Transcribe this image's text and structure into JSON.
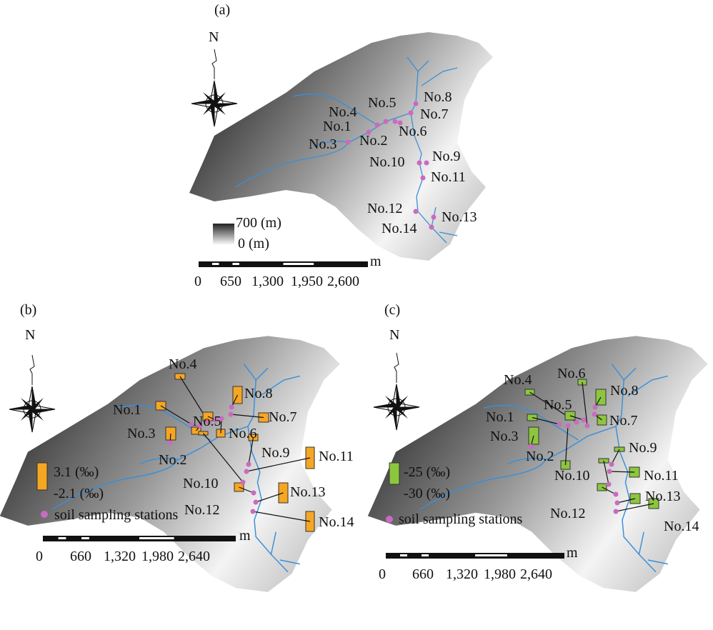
{
  "panels": [
    {
      "label": "(a)",
      "north": "N",
      "stations": [
        "No.1",
        "No.2",
        "No.3",
        "No.4",
        "No.5",
        "No.6",
        "No.7",
        "No.8",
        "No.9",
        "No.10",
        "No.11",
        "No.12",
        "No.13",
        "No.14"
      ],
      "legend": {
        "high": "700 (m)",
        "low": "0 (m)"
      },
      "scale": {
        "unit": "m",
        "ticks": [
          "0",
          "650",
          "1,300",
          "1,950",
          "2,600"
        ]
      }
    },
    {
      "label": "(b)",
      "north": "N",
      "stations": [
        "No.1",
        "No.2",
        "No.3",
        "No.4",
        "No.5",
        "No.6",
        "No.7",
        "No.8",
        "No.9",
        "No.10",
        "No.11",
        "No.12",
        "No.13",
        "No.14"
      ],
      "legend": {
        "high": "3.1 (‰)",
        "low": "-2.1 (‰)",
        "marker": "soil sampling stations"
      },
      "scale": {
        "unit": "m",
        "ticks": [
          "0",
          "660",
          "1,320",
          "1,980",
          "2,640"
        ]
      }
    },
    {
      "label": "(c)",
      "north": "N",
      "stations": [
        "No.1",
        "No.2",
        "No.3",
        "No.4",
        "No.5",
        "No.6",
        "No.7",
        "No.8",
        "No.9",
        "No.10",
        "No.11",
        "No.12",
        "No.13",
        "No.14"
      ],
      "legend": {
        "high": "-25 (‰)",
        "low": "-30 (‰)",
        "marker": "soil sampling stations"
      },
      "scale": {
        "unit": "m",
        "ticks": [
          "0",
          "660",
          "1,320",
          "1,980",
          "2,640"
        ]
      }
    }
  ]
}
